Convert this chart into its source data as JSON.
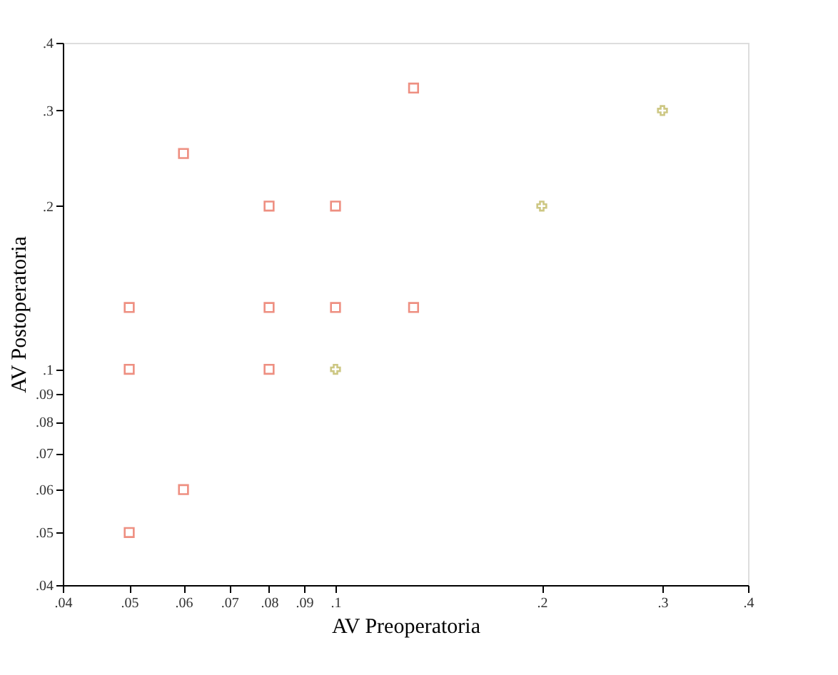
{
  "chart_data": {
    "type": "scatter",
    "xlabel": "AV Preoperatoria",
    "ylabel": "AV Postoperatoria",
    "log": "xy",
    "grid": false,
    "xlim": [
      0.04,
      0.4
    ],
    "ylim": [
      0.04,
      0.4
    ],
    "xticks": [
      {
        "value": 0.04,
        "label": ".04"
      },
      {
        "value": 0.05,
        "label": ".05"
      },
      {
        "value": 0.06,
        "label": ".06"
      },
      {
        "value": 0.07,
        "label": ".07"
      },
      {
        "value": 0.08,
        "label": ".08"
      },
      {
        "value": 0.09,
        "label": ".09"
      },
      {
        "value": 0.1,
        "label": ".1"
      },
      {
        "value": 0.2,
        "label": ".2"
      },
      {
        "value": 0.3,
        "label": ".3"
      },
      {
        "value": 0.4,
        "label": ".4"
      }
    ],
    "yticks": [
      {
        "value": 0.04,
        "label": ".04"
      },
      {
        "value": 0.05,
        "label": ".05"
      },
      {
        "value": 0.06,
        "label": ".06"
      },
      {
        "value": 0.07,
        "label": ".07"
      },
      {
        "value": 0.08,
        "label": ".08"
      },
      {
        "value": 0.09,
        "label": ".09"
      },
      {
        "value": 0.1,
        "label": ".1"
      },
      {
        "value": 0.2,
        "label": ".2"
      },
      {
        "value": 0.3,
        "label": ".3"
      },
      {
        "value": 0.4,
        "label": ".4"
      }
    ],
    "series": [
      {
        "color": "#e8604c",
        "marker": "square",
        "x": [
          0.05,
          0.05,
          0.05,
          0.06,
          0.06,
          0.08,
          0.08,
          0.08,
          0.1,
          0.1,
          0.13,
          0.13
        ],
        "values": [
          0.13,
          0.1,
          0.05,
          0.25,
          0.06,
          0.2,
          0.13,
          0.1,
          0.2,
          0.13,
          0.33,
          0.13
        ]
      },
      {
        "color": "#b8b050",
        "marker": "cross",
        "x": [
          0.1,
          0.2,
          0.3
        ],
        "values": [
          0.1,
          0.2,
          0.3
        ]
      }
    ]
  }
}
